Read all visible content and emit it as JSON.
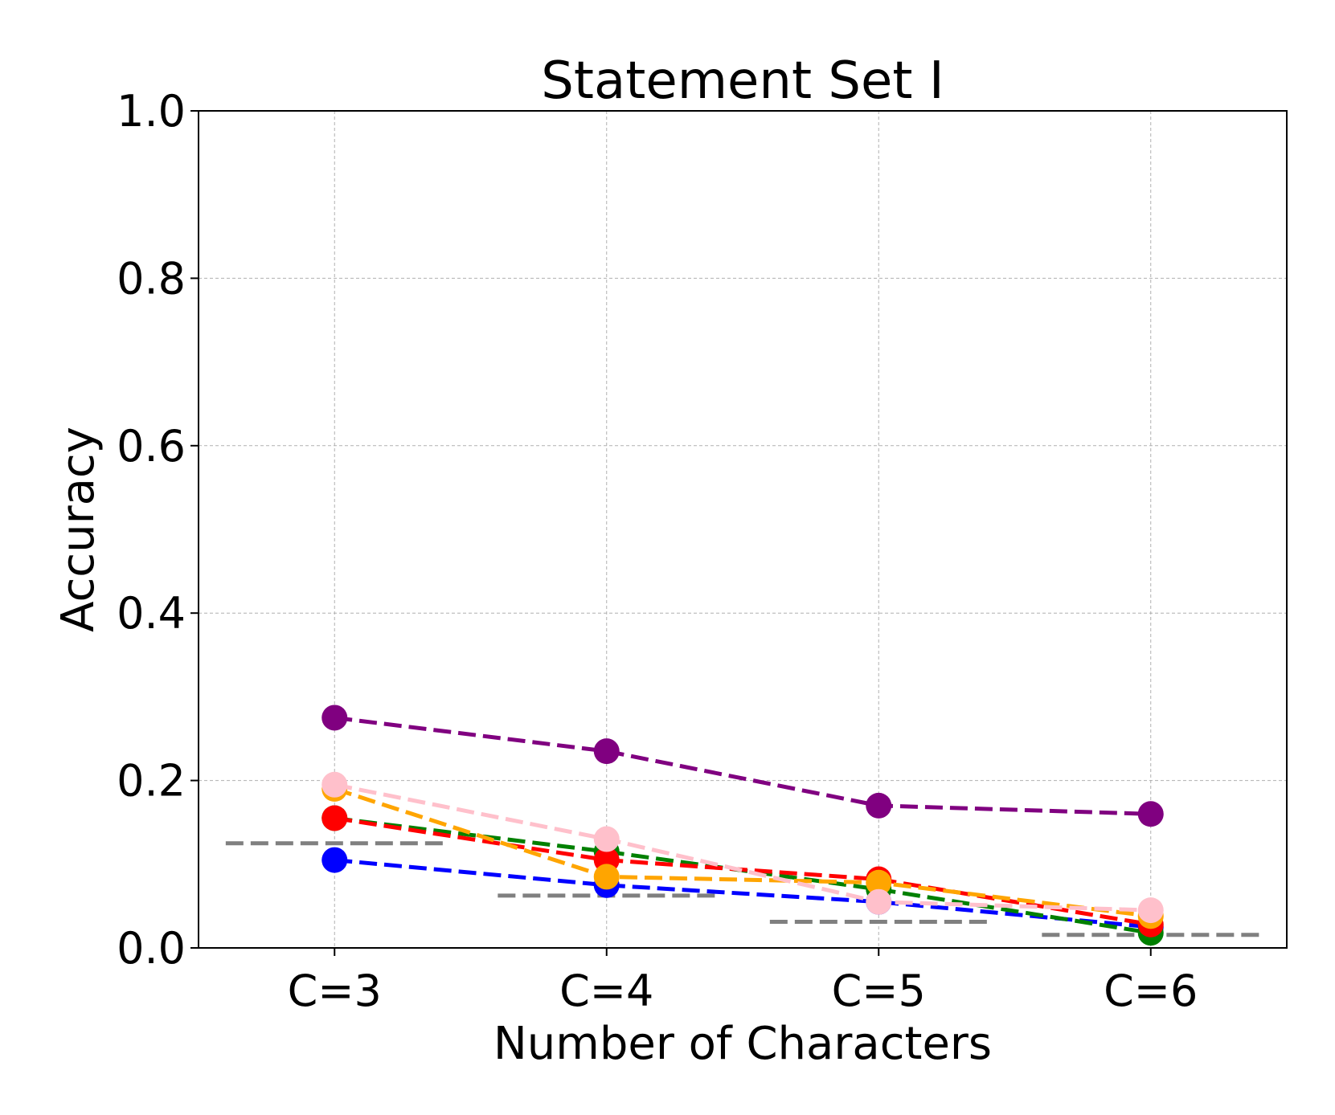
{
  "chart_data": {
    "type": "line",
    "title": "Statement Set I",
    "xlabel": "Number of Characters",
    "ylabel": "Accuracy",
    "categories": [
      "C=3",
      "C=4",
      "C=5",
      "C=6"
    ],
    "ylim": [
      0.0,
      1.0
    ],
    "yticks": [
      "0.0",
      "0.2",
      "0.4",
      "0.6",
      "0.8",
      "1.0"
    ],
    "grid": true,
    "legend": "none",
    "series": [
      {
        "color": "#800080",
        "style": "dashed",
        "marker": "circle",
        "values": [
          0.275,
          0.235,
          0.17,
          0.16
        ]
      },
      {
        "color": "#ffc0cb",
        "style": "dashed",
        "marker": "circle",
        "values": [
          0.195,
          0.13,
          0.055,
          0.045
        ]
      },
      {
        "color": "#ffa500",
        "style": "dashed",
        "marker": "circle",
        "values": [
          0.19,
          0.085,
          0.078,
          0.038
        ]
      },
      {
        "color": "#ff0000",
        "style": "dashed",
        "marker": "circle",
        "values": [
          0.155,
          0.105,
          0.082,
          0.028
        ]
      },
      {
        "color": "#008000",
        "style": "dashed",
        "marker": "circle",
        "values": [
          0.155,
          0.115,
          0.07,
          0.018
        ]
      },
      {
        "color": "#0000ff",
        "style": "dashed",
        "marker": "circle",
        "values": [
          0.105,
          0.075,
          0.055,
          0.025
        ]
      }
    ],
    "baseline": {
      "color": "#808080",
      "style": "dashed",
      "values": [
        0.125,
        0.0625,
        0.03125,
        0.015625
      ]
    }
  }
}
